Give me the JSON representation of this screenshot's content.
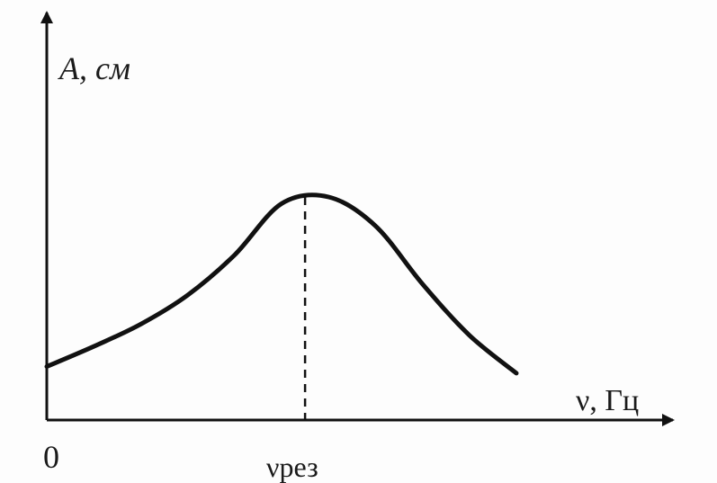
{
  "chart_data": {
    "type": "line",
    "ylabel": "A, см",
    "xlabel": "ν, Гц",
    "origin_label": "0",
    "peak_tick_label": "νрез",
    "axis_ticks_shown": false,
    "grid": false,
    "legend": "none",
    "series": [
      {
        "x": [
          0.0,
          0.2,
          0.4,
          0.6,
          0.8,
          1.0,
          1.2,
          1.4,
          1.6,
          1.8,
          2.0
        ],
        "y": [
          0.24,
          0.33,
          0.43,
          0.56,
          0.74,
          0.97,
          1.0,
          0.87,
          0.61,
          0.38,
          0.21
        ]
      }
    ],
    "peak": {
      "x": 1.1,
      "y": 1.0
    },
    "colors": {
      "curve": "#111111",
      "axis": "#111111",
      "paper": "#fdfdfd"
    }
  }
}
